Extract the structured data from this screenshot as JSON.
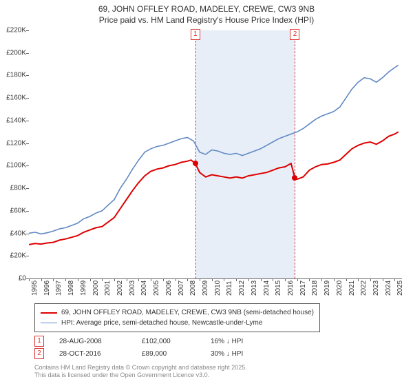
{
  "title": {
    "line1": "69, JOHN OFFLEY ROAD, MADELEY, CREWE, CW3 9NB",
    "line2": "Price paid vs. HM Land Registry's House Price Index (HPI)"
  },
  "chart": {
    "type": "line",
    "background_color": "#ffffff",
    "shaded_band_color": "#e8eef7",
    "x": {
      "min": 1995,
      "max": 2025.6,
      "tick_step": 1,
      "labels": [
        "1995",
        "1996",
        "1997",
        "1998",
        "1999",
        "2000",
        "2001",
        "2002",
        "2003",
        "2004",
        "2005",
        "2006",
        "2007",
        "2008",
        "2009",
        "2010",
        "2011",
        "2012",
        "2013",
        "2014",
        "2015",
        "2016",
        "2017",
        "2018",
        "2019",
        "2020",
        "2021",
        "2022",
        "2023",
        "2024",
        "2025"
      ]
    },
    "y": {
      "min": 0,
      "max": 220000,
      "tick_step": 20000,
      "labels": [
        "£0",
        "£20K",
        "£40K",
        "£60K",
        "£80K",
        "£100K",
        "£120K",
        "£140K",
        "£160K",
        "£180K",
        "£200K",
        "£220K"
      ]
    },
    "shaded_band": {
      "x_start": 2008.65,
      "x_end": 2016.82
    },
    "markers": [
      {
        "id": "1",
        "x": 2008.65,
        "y": 102000
      },
      {
        "id": "2",
        "x": 2016.82,
        "y": 89000
      }
    ],
    "series": [
      {
        "name": "property",
        "label": "69, JOHN OFFLEY ROAD, MADELEY, CREWE, CW3 9NB (semi-detached house)",
        "color": "#dd0000",
        "line_width": 2,
        "data": [
          [
            1995,
            30000
          ],
          [
            1995.5,
            31000
          ],
          [
            1996,
            30500
          ],
          [
            1996.5,
            31500
          ],
          [
            1997,
            32000
          ],
          [
            1997.5,
            34000
          ],
          [
            1998,
            35000
          ],
          [
            1998.5,
            36500
          ],
          [
            1999,
            38000
          ],
          [
            1999.5,
            41000
          ],
          [
            2000,
            43000
          ],
          [
            2000.5,
            45000
          ],
          [
            2001,
            46000
          ],
          [
            2001.5,
            50000
          ],
          [
            2002,
            54000
          ],
          [
            2002.5,
            62000
          ],
          [
            2003,
            70000
          ],
          [
            2003.5,
            78000
          ],
          [
            2004,
            85000
          ],
          [
            2004.5,
            91000
          ],
          [
            2005,
            95000
          ],
          [
            2005.5,
            97000
          ],
          [
            2006,
            98000
          ],
          [
            2006.5,
            100000
          ],
          [
            2007,
            101000
          ],
          [
            2007.5,
            103000
          ],
          [
            2008,
            104000
          ],
          [
            2008.3,
            105000
          ],
          [
            2008.65,
            102000
          ],
          [
            2009,
            94000
          ],
          [
            2009.5,
            90000
          ],
          [
            2010,
            92000
          ],
          [
            2010.5,
            91000
          ],
          [
            2011,
            90000
          ],
          [
            2011.5,
            89000
          ],
          [
            2012,
            90000
          ],
          [
            2012.5,
            89000
          ],
          [
            2013,
            91000
          ],
          [
            2013.5,
            92000
          ],
          [
            2014,
            93000
          ],
          [
            2014.5,
            94000
          ],
          [
            2015,
            96000
          ],
          [
            2015.5,
            98000
          ],
          [
            2016,
            99000
          ],
          [
            2016.5,
            102000
          ],
          [
            2016.82,
            89000
          ],
          [
            2017,
            88000
          ],
          [
            2017.5,
            90000
          ],
          [
            2018,
            96000
          ],
          [
            2018.5,
            99000
          ],
          [
            2019,
            101000
          ],
          [
            2019.5,
            101500
          ],
          [
            2020,
            103000
          ],
          [
            2020.5,
            105000
          ],
          [
            2021,
            110000
          ],
          [
            2021.5,
            115000
          ],
          [
            2022,
            118000
          ],
          [
            2022.5,
            120000
          ],
          [
            2023,
            121000
          ],
          [
            2023.5,
            119000
          ],
          [
            2024,
            122000
          ],
          [
            2024.5,
            126000
          ],
          [
            2025,
            128000
          ],
          [
            2025.3,
            130000
          ]
        ]
      },
      {
        "name": "hpi",
        "label": "HPI: Average price, semi-detached house, Newcastle-under-Lyme",
        "color": "#6088c4",
        "line_width": 1.6,
        "data": [
          [
            1995,
            40000
          ],
          [
            1995.5,
            41000
          ],
          [
            1996,
            39500
          ],
          [
            1996.5,
            40500
          ],
          [
            1997,
            42000
          ],
          [
            1997.5,
            44000
          ],
          [
            1998,
            45000
          ],
          [
            1998.5,
            47000
          ],
          [
            1999,
            49000
          ],
          [
            1999.5,
            53000
          ],
          [
            2000,
            55000
          ],
          [
            2000.5,
            58000
          ],
          [
            2001,
            60000
          ],
          [
            2001.5,
            65000
          ],
          [
            2002,
            70000
          ],
          [
            2002.5,
            80000
          ],
          [
            2003,
            88000
          ],
          [
            2003.5,
            97000
          ],
          [
            2004,
            105000
          ],
          [
            2004.5,
            112000
          ],
          [
            2005,
            115000
          ],
          [
            2005.5,
            117000
          ],
          [
            2006,
            118000
          ],
          [
            2006.5,
            120000
          ],
          [
            2007,
            122000
          ],
          [
            2007.5,
            124000
          ],
          [
            2008,
            125000
          ],
          [
            2008.5,
            122000
          ],
          [
            2009,
            112000
          ],
          [
            2009.5,
            110000
          ],
          [
            2010,
            114000
          ],
          [
            2010.5,
            113000
          ],
          [
            2011,
            111000
          ],
          [
            2011.5,
            110000
          ],
          [
            2012,
            111000
          ],
          [
            2012.5,
            109000
          ],
          [
            2013,
            111000
          ],
          [
            2013.5,
            113000
          ],
          [
            2014,
            115000
          ],
          [
            2014.5,
            118000
          ],
          [
            2015,
            121000
          ],
          [
            2015.5,
            124000
          ],
          [
            2016,
            126000
          ],
          [
            2016.5,
            128000
          ],
          [
            2017,
            130000
          ],
          [
            2017.5,
            133000
          ],
          [
            2018,
            137000
          ],
          [
            2018.5,
            141000
          ],
          [
            2019,
            144000
          ],
          [
            2019.5,
            146000
          ],
          [
            2020,
            148000
          ],
          [
            2020.5,
            152000
          ],
          [
            2021,
            160000
          ],
          [
            2021.5,
            168000
          ],
          [
            2022,
            174000
          ],
          [
            2022.5,
            178000
          ],
          [
            2023,
            177000
          ],
          [
            2023.5,
            174000
          ],
          [
            2024,
            178000
          ],
          [
            2024.5,
            183000
          ],
          [
            2025,
            187000
          ],
          [
            2025.3,
            189000
          ]
        ]
      }
    ]
  },
  "legend": {
    "border_color": "#555555"
  },
  "transactions": [
    {
      "marker": "1",
      "date": "28-AUG-2008",
      "price": "£102,000",
      "diff": "16% ↓ HPI"
    },
    {
      "marker": "2",
      "date": "28-OCT-2016",
      "price": "£89,000",
      "diff": "30% ↓ HPI"
    }
  ],
  "attribution": {
    "line1": "Contains HM Land Registry data © Crown copyright and database right 2025.",
    "line2": "This data is licensed under the Open Government Licence v3.0."
  }
}
